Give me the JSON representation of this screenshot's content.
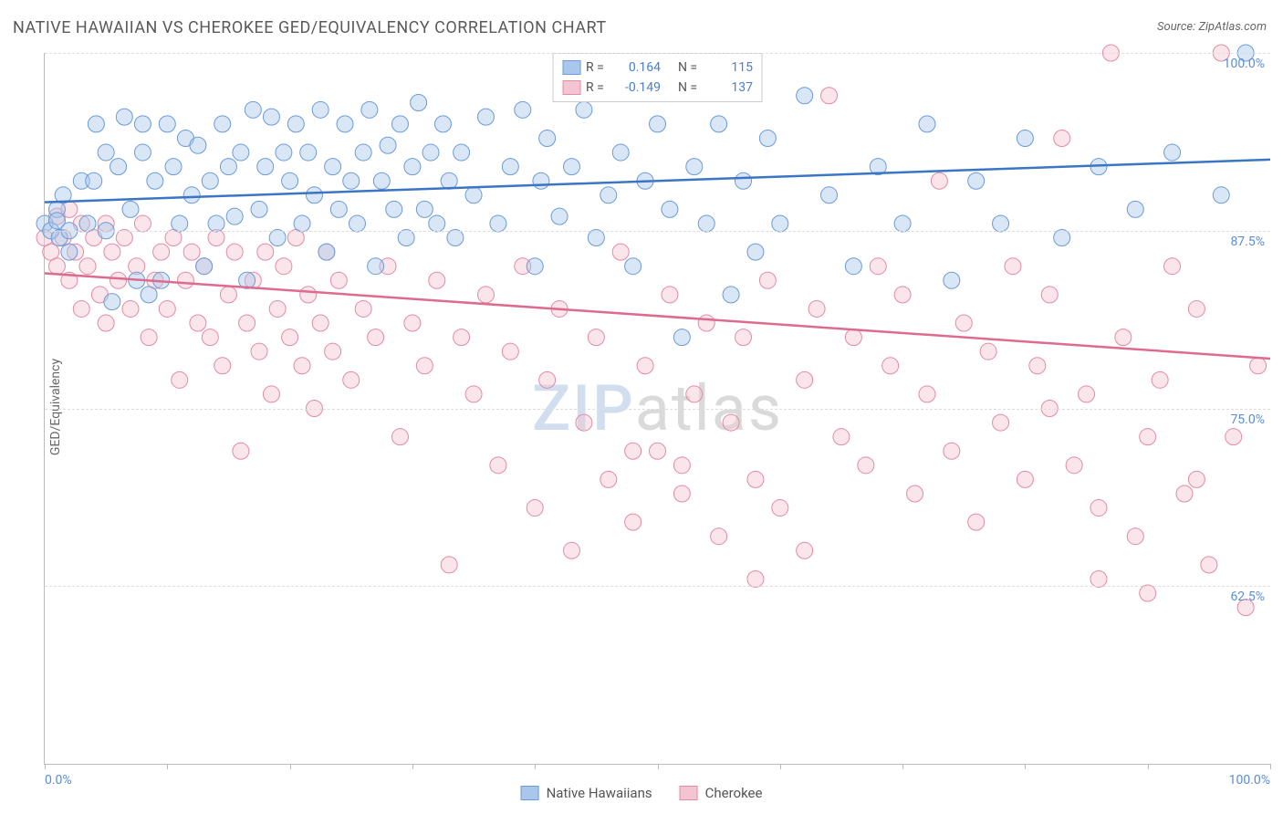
{
  "title": "NATIVE HAWAIIAN VS CHEROKEE GED/EQUIVALENCY CORRELATION CHART",
  "source_label": "Source:",
  "source_value": "ZipAtlas.com",
  "ylabel": "GED/Equivalency",
  "watermark_a": "ZIP",
  "watermark_b": "atlas",
  "chart": {
    "type": "scatter",
    "background_color": "#ffffff",
    "grid_color": "#dddddd",
    "axis_color": "#bbbbbb",
    "tick_label_color": "#5b8dd6",
    "xlim": [
      0,
      100
    ],
    "ylim": [
      50,
      100
    ],
    "xticks_minor": [
      0,
      10,
      20,
      30,
      40,
      50,
      60,
      70,
      80,
      90,
      100
    ],
    "xtick_labels": [
      {
        "x": 0,
        "label": "0.0%",
        "align": "left"
      },
      {
        "x": 100,
        "label": "100.0%",
        "align": "right"
      }
    ],
    "yticks": [
      {
        "y": 62.5,
        "label": "62.5%"
      },
      {
        "y": 75.0,
        "label": "75.0%"
      },
      {
        "y": 87.5,
        "label": "87.5%"
      },
      {
        "y": 100.0,
        "label": "100.0%"
      }
    ],
    "marker_radius": 9,
    "marker_opacity": 0.45,
    "line_width": 2.5,
    "series": [
      {
        "name": "Native Hawaiians",
        "color_fill": "#a9c7ec",
        "color_stroke": "#6b9bd8",
        "line_color": "#3b76c4",
        "R": "0.164",
        "N": "115",
        "trend": {
          "y_at_x0": 89.5,
          "y_at_x100": 92.5
        },
        "points": [
          [
            0,
            88
          ],
          [
            0.5,
            87.5
          ],
          [
            1,
            89
          ],
          [
            1,
            88.2
          ],
          [
            1.2,
            87
          ],
          [
            1.5,
            90
          ],
          [
            2,
            87.5
          ],
          [
            2,
            86
          ],
          [
            3,
            91
          ],
          [
            3.5,
            88
          ],
          [
            4,
            91
          ],
          [
            4.2,
            95
          ],
          [
            5,
            93
          ],
          [
            5,
            87.5
          ],
          [
            5.5,
            82.5
          ],
          [
            6,
            92
          ],
          [
            6.5,
            95.5
          ],
          [
            7,
            89
          ],
          [
            7.5,
            84
          ],
          [
            8,
            93
          ],
          [
            8,
            95
          ],
          [
            8.5,
            83
          ],
          [
            9,
            91
          ],
          [
            9.5,
            84
          ],
          [
            10,
            95
          ],
          [
            10.5,
            92
          ],
          [
            11,
            88
          ],
          [
            11.5,
            94
          ],
          [
            12,
            90
          ],
          [
            12.5,
            93.5
          ],
          [
            13,
            85
          ],
          [
            13.5,
            91
          ],
          [
            14,
            88
          ],
          [
            14.5,
            95
          ],
          [
            15,
            92
          ],
          [
            15.5,
            88.5
          ],
          [
            16,
            93
          ],
          [
            16.5,
            84
          ],
          [
            17,
            96
          ],
          [
            17.5,
            89
          ],
          [
            18,
            92
          ],
          [
            18.5,
            95.5
          ],
          [
            19,
            87
          ],
          [
            19.5,
            93
          ],
          [
            20,
            91
          ],
          [
            20.5,
            95
          ],
          [
            21,
            88
          ],
          [
            21.5,
            93
          ],
          [
            22,
            90
          ],
          [
            22.5,
            96
          ],
          [
            23,
            86
          ],
          [
            23.5,
            92
          ],
          [
            24,
            89
          ],
          [
            24.5,
            95
          ],
          [
            25,
            91
          ],
          [
            25.5,
            88
          ],
          [
            26,
            93
          ],
          [
            26.5,
            96
          ],
          [
            27,
            85
          ],
          [
            27.5,
            91
          ],
          [
            28,
            93.5
          ],
          [
            28.5,
            89
          ],
          [
            29,
            95
          ],
          [
            29.5,
            87
          ],
          [
            30,
            92
          ],
          [
            30.5,
            96.5
          ],
          [
            31,
            89
          ],
          [
            31.5,
            93
          ],
          [
            32,
            88
          ],
          [
            32.5,
            95
          ],
          [
            33,
            91
          ],
          [
            33.5,
            87
          ],
          [
            34,
            93
          ],
          [
            35,
            90
          ],
          [
            36,
            95.5
          ],
          [
            37,
            88
          ],
          [
            38,
            92
          ],
          [
            39,
            96
          ],
          [
            40,
            85
          ],
          [
            40.5,
            91
          ],
          [
            41,
            94
          ],
          [
            42,
            88.5
          ],
          [
            43,
            92
          ],
          [
            44,
            96
          ],
          [
            45,
            87
          ],
          [
            46,
            90
          ],
          [
            47,
            93
          ],
          [
            48,
            85
          ],
          [
            49,
            91
          ],
          [
            50,
            95
          ],
          [
            51,
            89
          ],
          [
            52,
            80
          ],
          [
            53,
            92
          ],
          [
            54,
            88
          ],
          [
            55,
            95
          ],
          [
            56,
            83
          ],
          [
            57,
            91
          ],
          [
            58,
            86
          ],
          [
            59,
            94
          ],
          [
            60,
            88
          ],
          [
            62,
            97
          ],
          [
            64,
            90
          ],
          [
            66,
            85
          ],
          [
            68,
            92
          ],
          [
            70,
            88
          ],
          [
            72,
            95
          ],
          [
            74,
            84
          ],
          [
            76,
            91
          ],
          [
            78,
            88
          ],
          [
            80,
            94
          ],
          [
            83,
            87
          ],
          [
            86,
            92
          ],
          [
            89,
            89
          ],
          [
            92,
            93
          ],
          [
            96,
            90
          ],
          [
            98,
            100
          ]
        ]
      },
      {
        "name": "Cherokee",
        "color_fill": "#f4c5d1",
        "color_stroke": "#e48aa5",
        "line_color": "#dd6b8e",
        "R": "-0.149",
        "N": "137",
        "trend": {
          "y_at_x0": 84.5,
          "y_at_x100": 78.5
        },
        "points": [
          [
            0,
            87
          ],
          [
            0.5,
            86
          ],
          [
            1,
            88.5
          ],
          [
            1,
            85
          ],
          [
            1.5,
            87
          ],
          [
            2,
            89
          ],
          [
            2,
            84
          ],
          [
            2.5,
            86
          ],
          [
            3,
            88
          ],
          [
            3,
            82
          ],
          [
            3.5,
            85
          ],
          [
            4,
            87
          ],
          [
            4.5,
            83
          ],
          [
            5,
            88
          ],
          [
            5,
            81
          ],
          [
            5.5,
            86
          ],
          [
            6,
            84
          ],
          [
            6.5,
            87
          ],
          [
            7,
            82
          ],
          [
            7.5,
            85
          ],
          [
            8,
            88
          ],
          [
            8.5,
            80
          ],
          [
            9,
            84
          ],
          [
            9.5,
            86
          ],
          [
            10,
            82
          ],
          [
            10.5,
            87
          ],
          [
            11,
            77
          ],
          [
            11.5,
            84
          ],
          [
            12,
            86
          ],
          [
            12.5,
            81
          ],
          [
            13,
            85
          ],
          [
            13.5,
            80
          ],
          [
            14,
            87
          ],
          [
            14.5,
            78
          ],
          [
            15,
            83
          ],
          [
            15.5,
            86
          ],
          [
            16,
            72
          ],
          [
            16.5,
            81
          ],
          [
            17,
            84
          ],
          [
            17.5,
            79
          ],
          [
            18,
            86
          ],
          [
            18.5,
            76
          ],
          [
            19,
            82
          ],
          [
            19.5,
            85
          ],
          [
            20,
            80
          ],
          [
            20.5,
            87
          ],
          [
            21,
            78
          ],
          [
            21.5,
            83
          ],
          [
            22,
            75
          ],
          [
            22.5,
            81
          ],
          [
            23,
            86
          ],
          [
            23.5,
            79
          ],
          [
            24,
            84
          ],
          [
            25,
            77
          ],
          [
            26,
            82
          ],
          [
            27,
            80
          ],
          [
            28,
            85
          ],
          [
            29,
            73
          ],
          [
            30,
            81
          ],
          [
            31,
            78
          ],
          [
            32,
            84
          ],
          [
            33,
            64
          ],
          [
            34,
            80
          ],
          [
            35,
            76
          ],
          [
            36,
            83
          ],
          [
            37,
            71
          ],
          [
            38,
            79
          ],
          [
            39,
            85
          ],
          [
            40,
            68
          ],
          [
            41,
            77
          ],
          [
            42,
            82
          ],
          [
            43,
            65
          ],
          [
            44,
            74
          ],
          [
            45,
            80
          ],
          [
            46,
            70
          ],
          [
            47,
            86
          ],
          [
            48,
            67
          ],
          [
            49,
            78
          ],
          [
            50,
            72
          ],
          [
            51,
            83
          ],
          [
            52,
            69
          ],
          [
            53,
            76
          ],
          [
            54,
            81
          ],
          [
            55,
            66
          ],
          [
            56,
            74
          ],
          [
            57,
            80
          ],
          [
            58,
            70
          ],
          [
            59,
            84
          ],
          [
            60,
            68
          ],
          [
            62,
            77
          ],
          [
            63,
            82
          ],
          [
            64,
            97
          ],
          [
            65,
            73
          ],
          [
            66,
            80
          ],
          [
            67,
            71
          ],
          [
            68,
            85
          ],
          [
            69,
            78
          ],
          [
            70,
            83
          ],
          [
            71,
            69
          ],
          [
            72,
            76
          ],
          [
            73,
            91
          ],
          [
            74,
            72
          ],
          [
            75,
            81
          ],
          [
            76,
            67
          ],
          [
            77,
            79
          ],
          [
            78,
            74
          ],
          [
            79,
            85
          ],
          [
            80,
            70
          ],
          [
            81,
            78
          ],
          [
            82,
            83
          ],
          [
            83,
            94
          ],
          [
            84,
            71
          ],
          [
            85,
            76
          ],
          [
            86,
            63
          ],
          [
            87,
            100
          ],
          [
            88,
            80
          ],
          [
            89,
            66
          ],
          [
            90,
            62
          ],
          [
            91,
            77
          ],
          [
            92,
            85
          ],
          [
            93,
            69
          ],
          [
            94,
            82
          ],
          [
            95,
            64
          ],
          [
            96,
            100
          ],
          [
            97,
            73
          ],
          [
            98,
            61
          ],
          [
            99,
            78
          ],
          [
            82,
            75
          ],
          [
            86,
            68
          ],
          [
            90,
            73
          ],
          [
            94,
            70
          ],
          [
            58,
            63
          ],
          [
            62,
            65
          ],
          [
            48,
            72
          ],
          [
            52,
            71
          ]
        ]
      }
    ]
  },
  "legend_stats": {
    "R_label": "R =",
    "N_label": "N ="
  }
}
